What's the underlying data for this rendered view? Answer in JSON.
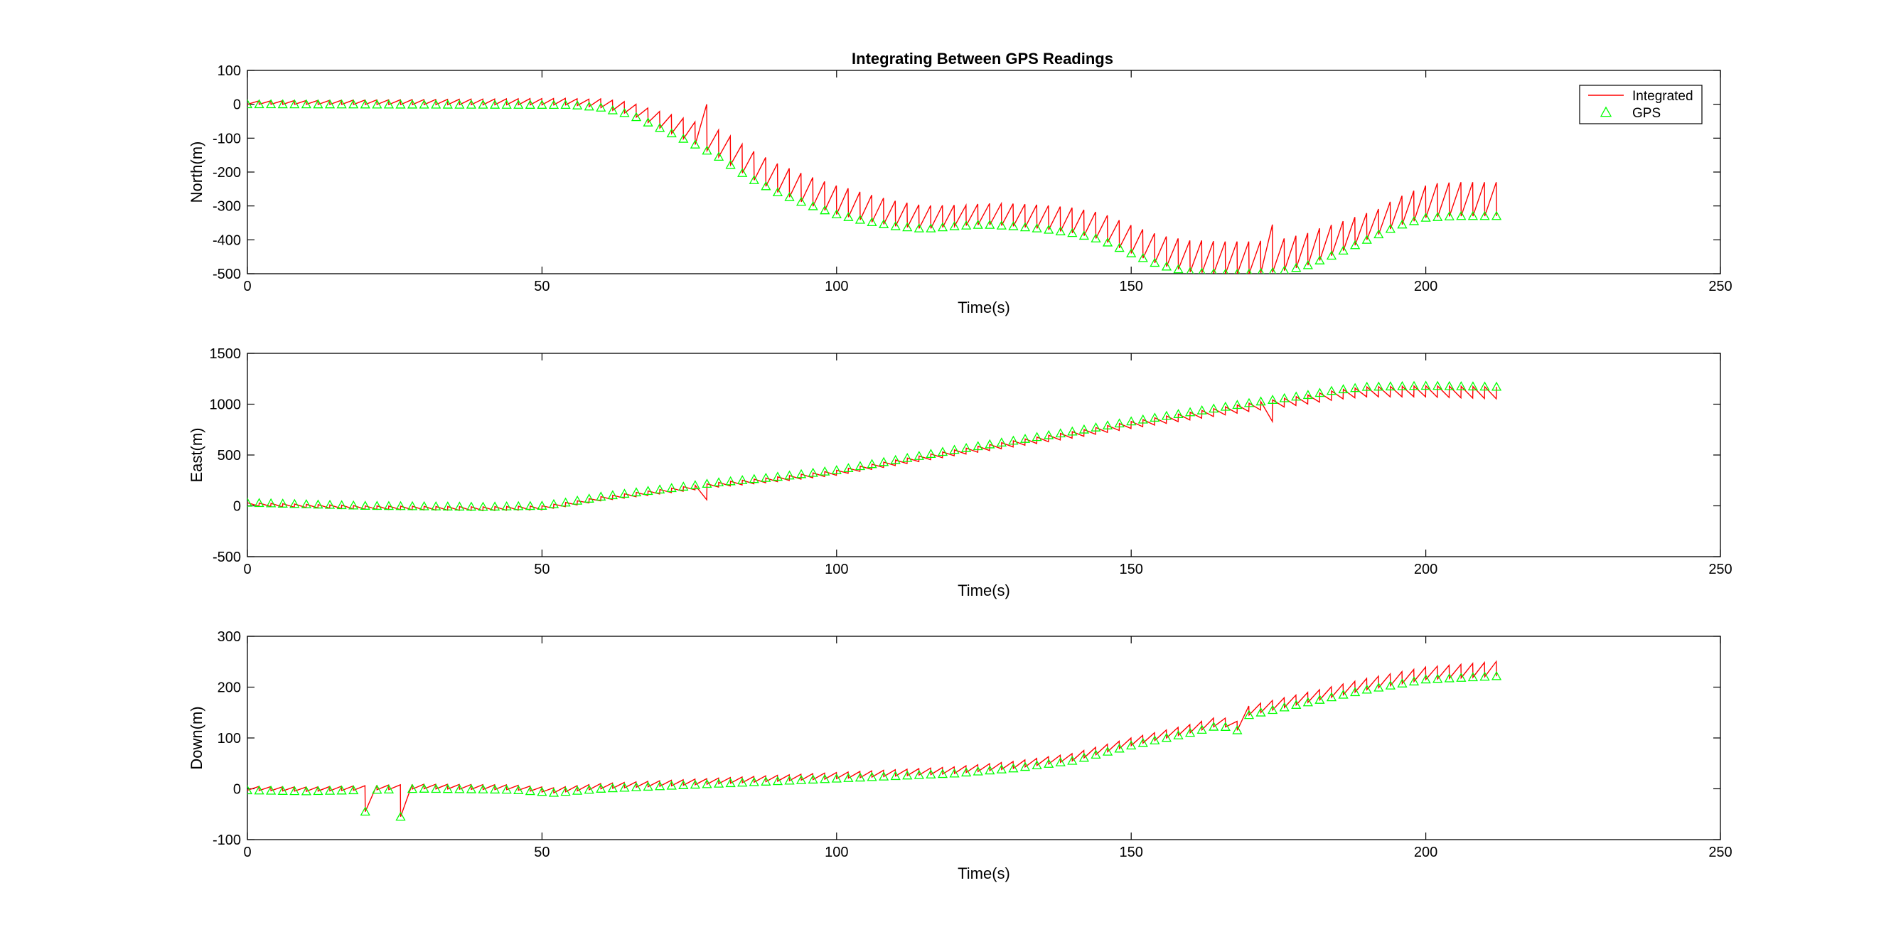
{
  "figure": {
    "title": "Integrating Between GPS Readings",
    "colors": {
      "integrated": "#ff0000",
      "gps": "#00ff00",
      "axes": "#000000",
      "background": "#ffffff"
    },
    "legend": {
      "placement": "top-right",
      "integrated_label": "Integrated",
      "gps_label": "GPS",
      "gps_marker": "triangle-icon"
    }
  },
  "chart_data": [
    {
      "type": "line",
      "title": "Integrating Between GPS Readings",
      "xlabel": "Time(s)",
      "ylabel": "North(m)",
      "xlim": [
        0,
        250
      ],
      "ylim": [
        -500,
        100
      ],
      "xticks": [
        "0",
        "50",
        "100",
        "150",
        "200",
        "250"
      ],
      "yticks": [
        "-500",
        "-400",
        "-300",
        "-200",
        "-100",
        "0",
        "100"
      ],
      "grid": false,
      "legend": "top-right",
      "gps_interval_s": 2,
      "gps_keyframes": {
        "t": [
          0,
          55,
          60,
          65,
          70,
          75,
          80,
          85,
          90,
          95,
          100,
          105,
          110,
          115,
          120,
          125,
          130,
          135,
          140,
          145,
          150,
          155,
          160,
          165,
          170,
          175,
          180,
          185,
          190,
          195,
          200,
          205,
          210,
          213
        ],
        "v": [
          0,
          -2,
          -10,
          -30,
          -70,
          -110,
          -155,
          -215,
          -260,
          -295,
          -325,
          -345,
          -360,
          -368,
          -360,
          -355,
          -360,
          -368,
          -380,
          -400,
          -440,
          -475,
          -495,
          -500,
          -500,
          -495,
          -475,
          -440,
          -400,
          -360,
          -335,
          -330,
          -330,
          -330
        ]
      },
      "integrated_offset_keyframes": {
        "t": [
          0,
          55,
          65,
          80,
          100,
          120,
          150,
          160,
          180,
          190,
          200,
          213
        ],
        "v": [
          10,
          20,
          40,
          85,
          85,
          60,
          85,
          95,
          95,
          75,
          100,
          100
        ]
      },
      "anomalies": [
        {
          "t": 76.5,
          "v": 0
        },
        {
          "t": 173.5,
          "v": -355
        }
      ],
      "series": [
        {
          "name": "Integrated"
        },
        {
          "name": "GPS"
        }
      ]
    },
    {
      "type": "line",
      "xlabel": "Time(s)",
      "ylabel": "East(m)",
      "xlim": [
        0,
        250
      ],
      "ylim": [
        -500,
        1500
      ],
      "xticks": [
        "0",
        "50",
        "100",
        "150",
        "200",
        "250"
      ],
      "yticks": [
        "-500",
        "0",
        "500",
        "1000",
        "1500"
      ],
      "grid": false,
      "gps_interval_s": 2,
      "gps_keyframes": {
        "t": [
          0,
          20,
          40,
          50,
          55,
          60,
          70,
          80,
          90,
          100,
          110,
          120,
          130,
          140,
          150,
          160,
          170,
          180,
          185,
          190,
          200,
          213
        ],
        "v": [
          30,
          0,
          -10,
          0,
          40,
          90,
          160,
          230,
          285,
          350,
          450,
          550,
          640,
          730,
          830,
          920,
          1010,
          1090,
          1140,
          1170,
          1180,
          1170
        ]
      },
      "integrated_offset_keyframes": {
        "t": [
          0,
          50,
          100,
          150,
          180,
          200,
          213
        ],
        "v": [
          -30,
          -40,
          -50,
          -70,
          -90,
          -110,
          -120
        ]
      },
      "anomalies": [
        {
          "t": 76.5,
          "v": 60
        },
        {
          "t": 173.5,
          "v": 830
        }
      ],
      "series": [
        {
          "name": "Integrated"
        },
        {
          "name": "GPS"
        }
      ]
    },
    {
      "type": "line",
      "xlabel": "Time(s)",
      "ylabel": "Down(m)",
      "xlim": [
        0,
        250
      ],
      "ylim": [
        -100,
        300
      ],
      "xticks": [
        "0",
        "50",
        "100",
        "150",
        "200",
        "250"
      ],
      "yticks": [
        "-100",
        "0",
        "100",
        "200",
        "300"
      ],
      "grid": false,
      "gps_interval_s": 2,
      "gps_keyframes": {
        "t": [
          0,
          10,
          30,
          45,
          52,
          60,
          80,
          100,
          120,
          130,
          140,
          145,
          150,
          160,
          165,
          168,
          170,
          180,
          190,
          200,
          213
        ],
        "v": [
          -3,
          -5,
          0,
          -2,
          -8,
          0,
          10,
          20,
          30,
          40,
          55,
          70,
          85,
          110,
          125,
          115,
          145,
          170,
          195,
          215,
          222
        ]
      },
      "integrated_offset_keyframes": {
        "t": [
          0,
          50,
          100,
          150,
          180,
          200,
          213
        ],
        "v": [
          8,
          10,
          12,
          15,
          20,
          25,
          30
        ]
      },
      "spikes": [
        {
          "t": 19.5,
          "v": -45
        },
        {
          "t": 26.5,
          "v": -55
        }
      ],
      "series": [
        {
          "name": "Integrated"
        },
        {
          "name": "GPS"
        }
      ]
    }
  ]
}
